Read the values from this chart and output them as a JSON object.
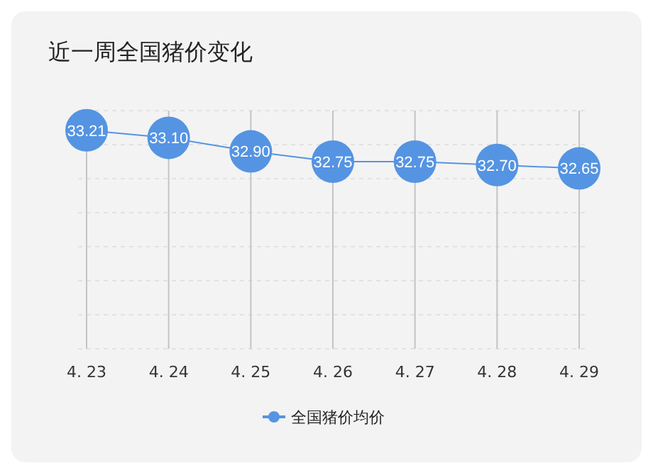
{
  "chart_data": {
    "type": "line",
    "title": "近一周全国猪价变化",
    "categories": [
      "4. 23",
      "4. 24",
      "4. 25",
      "4. 26",
      "4. 27",
      "4. 28",
      "4. 29"
    ],
    "series": [
      {
        "name": "全国猪价均价",
        "color": "#5594e2",
        "values": [
          33.21,
          33.1,
          32.9,
          32.75,
          32.75,
          32.7,
          32.65
        ],
        "value_labels": [
          "33.21",
          "33.10",
          "32.90",
          "32.75",
          "32.75",
          "32.70",
          "32.65"
        ]
      }
    ],
    "ylim": [
      30,
      33.5
    ],
    "yticks": [
      {
        "value": 30,
        "label": null
      },
      {
        "value": 30.5,
        "label": null
      },
      {
        "value": 31,
        "label": null
      },
      {
        "value": 31.5,
        "label": null
      },
      {
        "value": 32,
        "label": null
      },
      {
        "value": 32.5,
        "label": null
      },
      {
        "value": 33,
        "label": null
      },
      {
        "value": 33.5,
        "label": null
      }
    ],
    "tick_labels": "x",
    "grid": true,
    "marker": "circle",
    "legend": "bottom"
  }
}
